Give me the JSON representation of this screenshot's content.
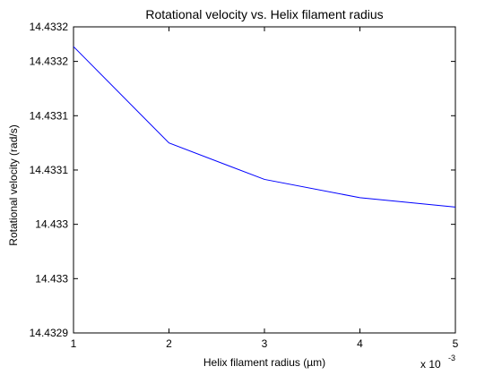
{
  "chart_data": {
    "type": "line",
    "title": "Rotational velocity vs. Helix filament radius",
    "xlabel": "Helix filament radius (µm)",
    "ylabel": "Rotational velocity (rad/s)",
    "x_multiplier_base": "x 10",
    "x_multiplier_exp": "-3",
    "xlim": [
      1,
      5
    ],
    "ylim": [
      14.4329,
      14.43321
    ],
    "x_ticks": [
      1,
      2,
      3,
      4,
      5
    ],
    "x_tick_labels": [
      "1",
      "2",
      "3",
      "4",
      "5"
    ],
    "y_ticks": [
      14.4329,
      14.432955,
      14.43301,
      14.433065,
      14.43312,
      14.433175,
      14.43321
    ],
    "y_tick_labels": [
      "14.4329",
      "14.433",
      "14.433",
      "14.4331",
      "14.4331",
      "14.4332",
      "14.4332"
    ],
    "grid": false,
    "legend": "none",
    "series": [
      {
        "x": [
          1,
          2,
          3,
          4,
          5
        ],
        "values": [
          14.43319,
          14.4330924,
          14.4330555,
          14.433037,
          14.4330275
        ],
        "color": "#0000ff"
      }
    ]
  }
}
